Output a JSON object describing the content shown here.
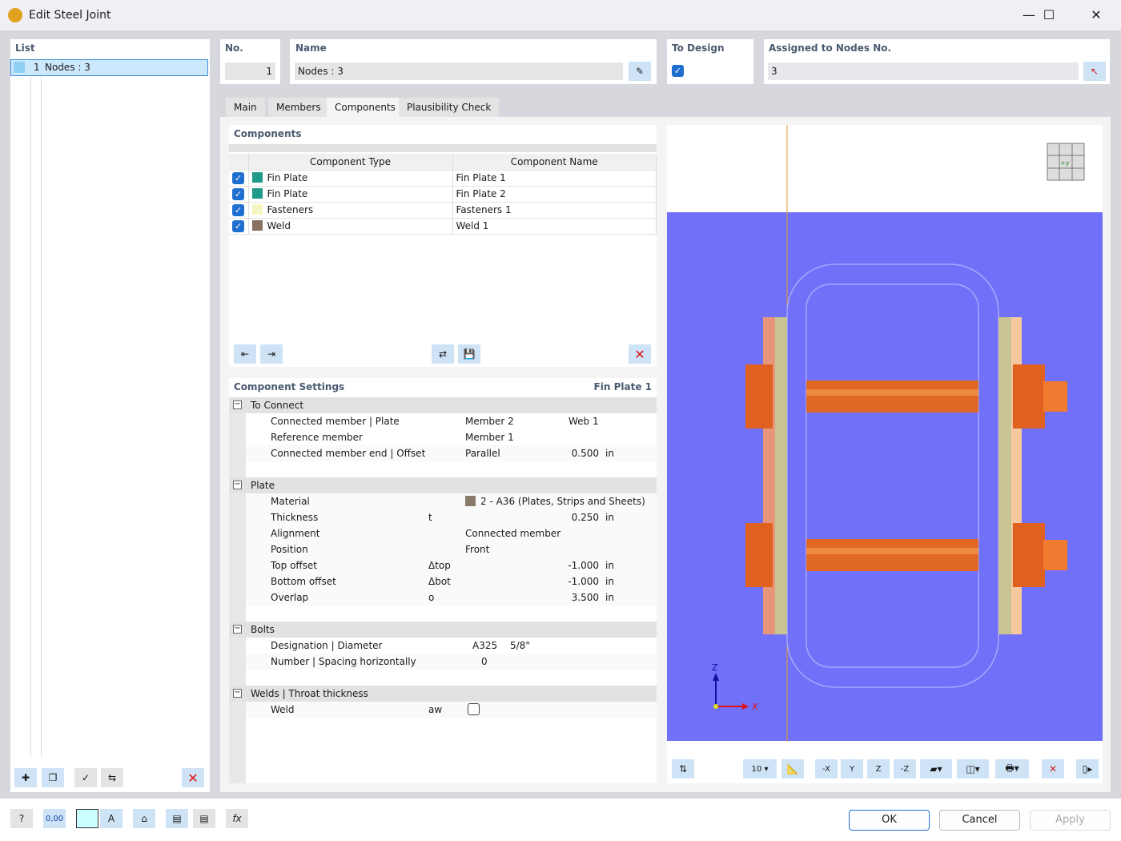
{
  "window": {
    "title": "Edit Steel Joint",
    "minimize": "—",
    "maximize": "☐",
    "close": "✕"
  },
  "list": {
    "label": "List",
    "items": [
      {
        "no": "1",
        "name": "Nodes : 3"
      }
    ]
  },
  "no": {
    "label": "No.",
    "value": "1"
  },
  "name": {
    "label": "Name",
    "value": "Nodes : 3"
  },
  "to_design": {
    "label": "To Design",
    "checked": true
  },
  "assigned": {
    "label": "Assigned to Nodes No.",
    "value": "3"
  },
  "tabs": [
    "Main",
    "Members",
    "Components",
    "Plausibility Check"
  ],
  "active_tab": "Components",
  "components": {
    "label": "Components",
    "col_type": "Component Type",
    "col_name": "Component Name",
    "rows": [
      {
        "type": "Fin Plate",
        "name": "Fin Plate 1",
        "color": "#1f9a8a",
        "checked": true
      },
      {
        "type": "Fin Plate",
        "name": "Fin Plate 2",
        "color": "#1f9a8a",
        "checked": true
      },
      {
        "type": "Fasteners",
        "name": "Fasteners 1",
        "color": "#f5f5c0",
        "checked": true
      },
      {
        "type": "Weld",
        "name": "Weld 1",
        "color": "#8a7060",
        "checked": true
      }
    ]
  },
  "settings": {
    "label": "Component Settings",
    "current": "Fin Plate 1",
    "to_connect": {
      "label": "To Connect",
      "r1": {
        "k": "Connected member | Plate",
        "v1": "Member 2",
        "v2": "Web 1"
      },
      "r2": {
        "k": "Reference member",
        "v1": "Member 1"
      },
      "r3": {
        "k": "Connected member end | Offset",
        "v1": "Parallel",
        "num": "0.500",
        "u": "in"
      }
    },
    "plate": {
      "label": "Plate",
      "material": {
        "k": "Material",
        "v": "2 - A36 (Plates, Strips and Sheets) |...",
        "color": "#8a7a6a"
      },
      "thickness": {
        "k": "Thickness",
        "s": "t",
        "num": "0.250",
        "u": "in"
      },
      "alignment": {
        "k": "Alignment",
        "v": "Connected member"
      },
      "position": {
        "k": "Position",
        "v": "Front"
      },
      "top": {
        "k": "Top offset",
        "s": "Δtop",
        "num": "-1.000",
        "u": "in"
      },
      "bottom": {
        "k": "Bottom offset",
        "s": "Δbot",
        "num": "-1.000",
        "u": "in"
      },
      "overlap": {
        "k": "Overlap",
        "s": "o",
        "num": "3.500",
        "u": "in"
      }
    },
    "bolts": {
      "label": "Bolts",
      "r1": {
        "k": "Designation | Diameter",
        "v1": "A325",
        "v2": "5/8\""
      },
      "r2": {
        "k": "Number | Spacing horizontally",
        "v1": "0"
      }
    },
    "welds": {
      "label": "Welds | Throat thickness",
      "r1": {
        "k": "Weld",
        "s": "aw",
        "checked": false
      }
    }
  },
  "view": {
    "background": "#7070f8",
    "axis_z": "Z",
    "axis_x": "X",
    "view_cube": "+y",
    "scale_label": "10"
  },
  "buttons": {
    "ok": "OK",
    "cancel": "Cancel",
    "apply": "Apply"
  },
  "status_value": "0,00"
}
